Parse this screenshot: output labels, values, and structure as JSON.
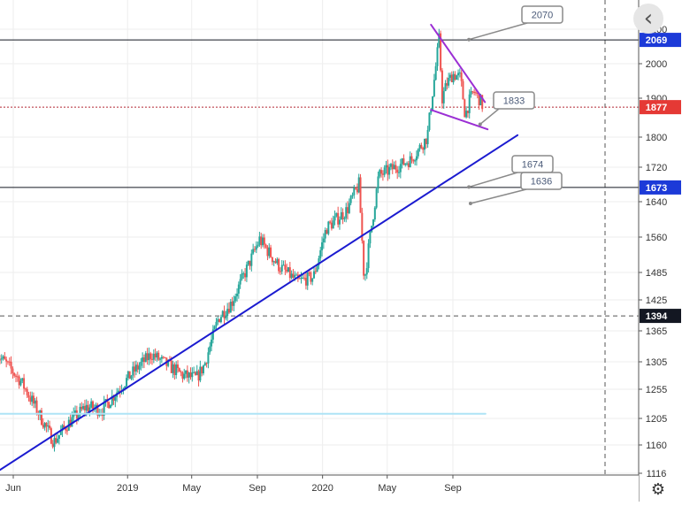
{
  "chart_data": {
    "type": "candlestick",
    "title": "",
    "xlabel": "",
    "ylabel": "",
    "x_axis": {
      "range": [
        "2018-05-01",
        "2020-12-31"
      ],
      "ticks": [
        {
          "date": "2018-06-01",
          "label": "Jun"
        },
        {
          "date": "2019-01-01",
          "label": "2019"
        },
        {
          "date": "2019-05-01",
          "label": "May"
        },
        {
          "date": "2019-09-01",
          "label": "Sep"
        },
        {
          "date": "2020-01-01",
          "label": "2020"
        },
        {
          "date": "2020-05-01",
          "label": "May"
        },
        {
          "date": "2020-09-01",
          "label": "Sep"
        }
      ]
    },
    "y_axis": {
      "range": [
        1105,
        2110
      ],
      "ticks": [
        1116,
        1160,
        1205,
        1255,
        1305,
        1365,
        1425,
        1485,
        1560,
        1640,
        1720,
        1800,
        1900,
        2000,
        2100
      ]
    },
    "grid": true,
    "price_path": [
      [
        "2018-05-01",
        1320
      ],
      [
        "2018-05-20",
        1300
      ],
      [
        "2018-06-15",
        1270
      ],
      [
        "2018-07-15",
        1220
      ],
      [
        "2018-08-16",
        1165
      ],
      [
        "2018-09-10",
        1195
      ],
      [
        "2018-10-15",
        1225
      ],
      [
        "2018-11-15",
        1220
      ],
      [
        "2018-12-15",
        1255
      ],
      [
        "2019-01-15",
        1290
      ],
      [
        "2019-02-15",
        1320
      ],
      [
        "2019-03-15",
        1300
      ],
      [
        "2019-04-15",
        1280
      ],
      [
        "2019-05-10",
        1275
      ],
      [
        "2019-05-25",
        1300
      ],
      [
        "2019-06-20",
        1390
      ],
      [
        "2019-07-15",
        1420
      ],
      [
        "2019-08-15",
        1500
      ],
      [
        "2019-09-05",
        1555
      ],
      [
        "2019-10-10",
        1500
      ],
      [
        "2019-11-15",
        1465
      ],
      [
        "2019-12-15",
        1475
      ],
      [
        "2020-01-08",
        1580
      ],
      [
        "2020-02-15",
        1620
      ],
      [
        "2020-03-09",
        1680
      ],
      [
        "2020-03-19",
        1465
      ],
      [
        "2020-04-15",
        1700
      ],
      [
        "2020-05-15",
        1720
      ],
      [
        "2020-06-15",
        1740
      ],
      [
        "2020-07-15",
        1800
      ],
      [
        "2020-07-27",
        1940
      ],
      [
        "2020-08-06",
        2070
      ],
      [
        "2020-08-12",
        1900
      ],
      [
        "2020-08-20",
        1940
      ],
      [
        "2020-09-01",
        1970
      ],
      [
        "2020-09-15",
        1960
      ],
      [
        "2020-09-24",
        1855
      ],
      [
        "2020-10-01",
        1890
      ],
      [
        "2020-10-10",
        1920
      ],
      [
        "2020-10-20",
        1900
      ],
      [
        "2020-10-28",
        1877
      ]
    ],
    "horizontal_lines": [
      {
        "value": 2069,
        "label": "2069",
        "style": "solid",
        "color": "#131722",
        "badge_color": "#1c3ad8"
      },
      {
        "value": 1877,
        "label": "1877",
        "style": "dotted",
        "color": "#b22833",
        "badge_color": "#e53935"
      },
      {
        "value": 1673,
        "label": "1673",
        "style": "solid",
        "color": "#131722",
        "badge_color": "#1c3ad8"
      },
      {
        "value": 1394,
        "label": "1394",
        "style": "dashed",
        "color": "#555555",
        "badge_color": "#131722"
      }
    ],
    "trend_lines": [
      {
        "name": "support",
        "color": "#1b1bd0",
        "from": [
          "2018-05-01",
          1118
        ],
        "to": [
          "2020-12-31",
          1805
        ]
      },
      {
        "name": "pennant-upper",
        "color": "#9b2fd4",
        "from": [
          "2020-07-22",
          2113
        ],
        "to": [
          "2020-10-31",
          1890
        ]
      },
      {
        "name": "pennant-lower",
        "color": "#9b2fd4",
        "from": [
          "2020-07-22",
          1870
        ],
        "to": [
          "2020-11-05",
          1820
        ]
      },
      {
        "name": "light-horizontal",
        "color": "#aee3f5",
        "from": [
          "2018-05-01",
          1213
        ],
        "to": [
          "2020-11-01",
          1213
        ]
      }
    ],
    "price_labels": [
      {
        "text": "2070",
        "anchor": [
          "2020-10-01",
          2070
        ]
      },
      {
        "text": "1833",
        "anchor": [
          "2020-10-22",
          1833
        ]
      },
      {
        "text": "1674",
        "anchor": [
          "2020-10-01",
          1674
        ]
      },
      {
        "text": "1636",
        "anchor": [
          "2020-10-04",
          1636
        ]
      }
    ],
    "colors": {
      "up": "#26a69a",
      "down": "#ef5350",
      "grid": "#eeeeee"
    }
  }
}
